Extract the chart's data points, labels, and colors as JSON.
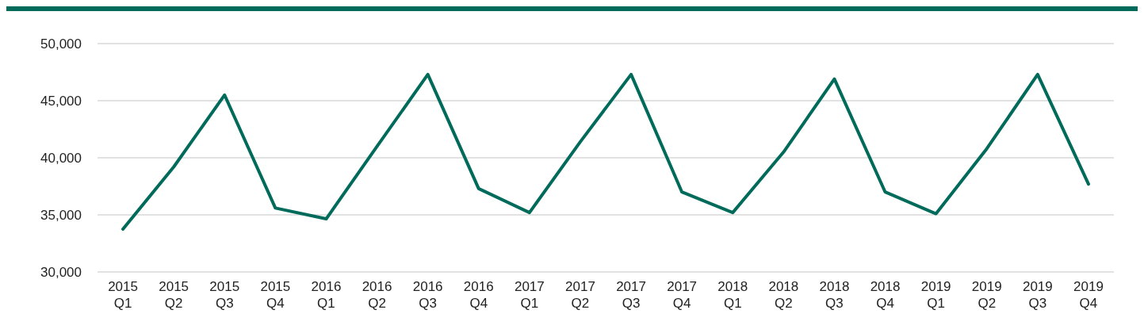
{
  "chart_data": {
    "type": "line",
    "categories": [
      "2015 Q1",
      "2015 Q2",
      "2015 Q3",
      "2015 Q4",
      "2016 Q1",
      "2016 Q2",
      "2016 Q3",
      "2016 Q4",
      "2017 Q1",
      "2017 Q2",
      "2017 Q3",
      "2017 Q4",
      "2018 Q1",
      "2018 Q2",
      "2018 Q3",
      "2018 Q4",
      "2019 Q1",
      "2019 Q2",
      "2019 Q3",
      "2019 Q4"
    ],
    "series": [
      {
        "color": "#006b5a",
        "values": [
          33750,
          39200,
          45500,
          35600,
          34650,
          41000,
          47300,
          37300,
          35200,
          41400,
          47300,
          37000,
          35200,
          40500,
          46900,
          37000,
          35100,
          40800,
          47300,
          37700
        ]
      }
    ],
    "ylim": [
      30000,
      50000
    ],
    "yticks": [
      {
        "value": 30000,
        "label": "30,000"
      },
      {
        "value": 35000,
        "label": "35,000"
      },
      {
        "value": 40000,
        "label": "40,000"
      },
      {
        "value": 45000,
        "label": "45,000"
      },
      {
        "value": 50000,
        "label": "50,000"
      }
    ],
    "grid": "y",
    "marker": "none",
    "line_style": "solid"
  }
}
